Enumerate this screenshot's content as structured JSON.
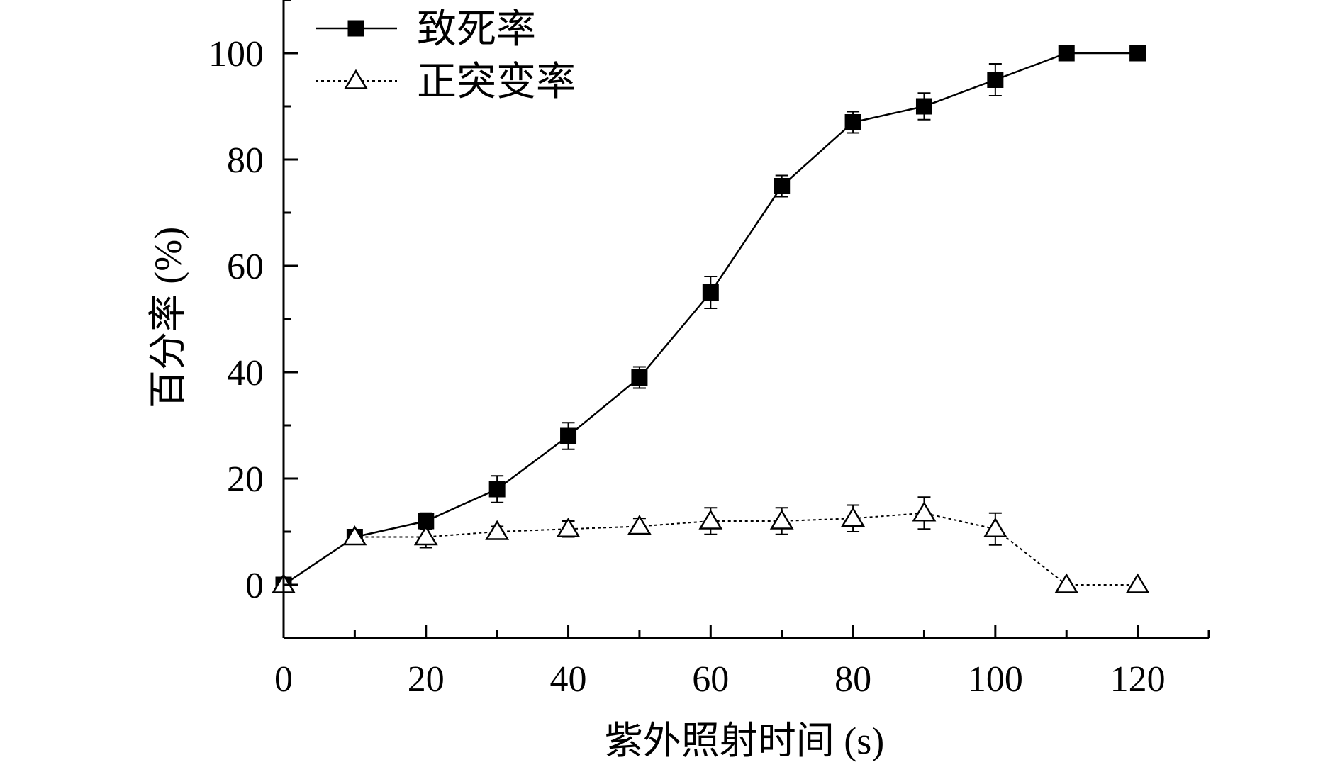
{
  "chart_data": {
    "type": "line",
    "xlabel": "紫外照射时间 (s)",
    "ylabel": "百分率 (%)",
    "xlim": [
      0,
      130
    ],
    "ylim": [
      -10,
      110
    ],
    "x_ticks": [
      0,
      20,
      40,
      60,
      80,
      100,
      120
    ],
    "y_ticks": [
      0,
      20,
      40,
      60,
      80,
      100
    ],
    "grid": false,
    "legend_position": "top-left",
    "x": [
      0,
      10,
      20,
      30,
      40,
      50,
      60,
      70,
      80,
      90,
      100,
      110,
      120
    ],
    "series": [
      {
        "name": "致死率",
        "marker": "filled-square",
        "line_style": "solid",
        "values": [
          0,
          9,
          12,
          18,
          28,
          39,
          55,
          75,
          87,
          90,
          95,
          100,
          100
        ],
        "errors": [
          0,
          1,
          1.5,
          2.5,
          2.5,
          2,
          3,
          2,
          2,
          2.5,
          3,
          0,
          0
        ]
      },
      {
        "name": "正突变率",
        "marker": "open-triangle",
        "line_style": "dotted",
        "values": [
          0,
          9,
          9,
          10,
          10.5,
          11,
          12,
          12,
          12.5,
          13.5,
          10.5,
          0,
          0
        ],
        "errors": [
          0,
          1,
          2,
          1,
          1.5,
          1.5,
          2.5,
          2.5,
          2.5,
          3,
          3,
          0,
          0
        ]
      }
    ]
  },
  "colors": {
    "axis": "#000000",
    "series": "#000000",
    "background": "#ffffff"
  }
}
